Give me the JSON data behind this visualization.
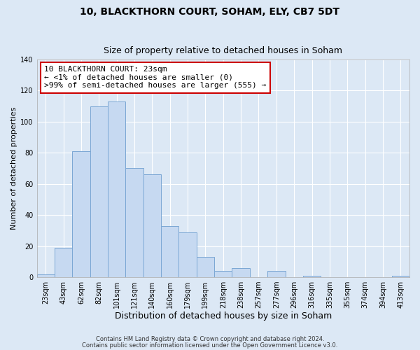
{
  "title": "10, BLACKTHORN COURT, SOHAM, ELY, CB7 5DT",
  "subtitle": "Size of property relative to detached houses in Soham",
  "xlabel": "Distribution of detached houses by size in Soham",
  "ylabel": "Number of detached properties",
  "bar_labels": [
    "23sqm",
    "43sqm",
    "62sqm",
    "82sqm",
    "101sqm",
    "121sqm",
    "140sqm",
    "160sqm",
    "179sqm",
    "199sqm",
    "218sqm",
    "238sqm",
    "257sqm",
    "277sqm",
    "296sqm",
    "316sqm",
    "335sqm",
    "355sqm",
    "374sqm",
    "394sqm",
    "413sqm"
  ],
  "bar_values": [
    2,
    19,
    81,
    110,
    113,
    70,
    66,
    33,
    29,
    13,
    4,
    6,
    0,
    4,
    0,
    1,
    0,
    0,
    0,
    0,
    1
  ],
  "bar_color": "#c6d9f1",
  "bar_edge_color": "#7ba7d4",
  "annotation_line1": "10 BLACKTHORN COURT: 23sqm",
  "annotation_line2": "← <1% of detached houses are smaller (0)",
  "annotation_line3": ">99% of semi-detached houses are larger (555) →",
  "annotation_box_color": "#ffffff",
  "annotation_box_edge_color": "#cc0000",
  "ylim": [
    0,
    140
  ],
  "yticks": [
    0,
    20,
    40,
    60,
    80,
    100,
    120,
    140
  ],
  "bg_color": "#dce8f5",
  "grid_color": "#ffffff",
  "footer_line1": "Contains HM Land Registry data © Crown copyright and database right 2024.",
  "footer_line2": "Contains public sector information licensed under the Open Government Licence v3.0.",
  "title_fontsize": 10,
  "subtitle_fontsize": 9,
  "xlabel_fontsize": 9,
  "ylabel_fontsize": 8,
  "tick_fontsize": 7,
  "annotation_fontsize": 8,
  "footer_fontsize": 6
}
